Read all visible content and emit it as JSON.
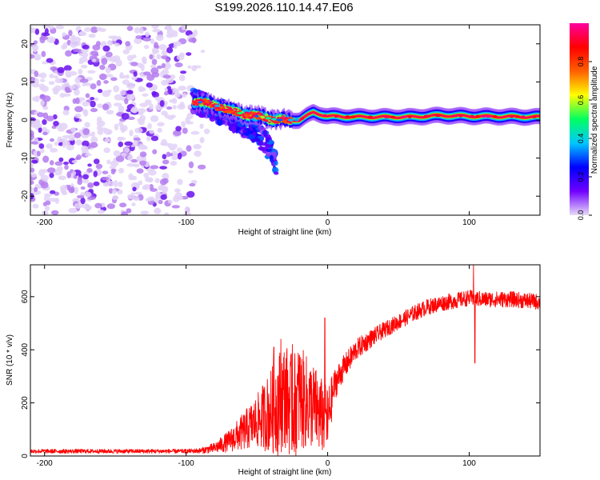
{
  "title": "S199.2026.110.14.47.E06",
  "chart_data": [
    {
      "type": "heatmap",
      "title": "S199.2026.110.14.47.E06",
      "xlabel": "Height of straight line (km)",
      "ylabel": "Frequency (Hz)",
      "xlim": [
        -210,
        150
      ],
      "ylim": [
        -25,
        25
      ],
      "xticks": [
        "-200",
        "-100",
        "0",
        "100"
      ],
      "xtick_values": [
        -200,
        -100,
        0,
        100
      ],
      "yticks": [
        "20",
        "10",
        "0",
        "-10",
        "-20"
      ],
      "ytick_values": [
        20,
        10,
        0,
        -10,
        -20
      ],
      "colorbar": {
        "label": "Normalized spectral amplitude",
        "range": [
          0,
          1
        ],
        "ticks": [
          "0.0",
          "0.2",
          "0.4",
          "0.6",
          "0.8"
        ],
        "tick_values": [
          0.0,
          0.2,
          0.4,
          0.6,
          0.8
        ],
        "colors": [
          "#e8dcf8",
          "#7000ff",
          "#0000ff",
          "#00c8ff",
          "#00ff60",
          "#ffff00",
          "#ff6000",
          "#ff0000",
          "#ff00a0"
        ]
      },
      "features": [
        {
          "name": "noise",
          "x_range": [
            -210,
            -85
          ],
          "freq_range": [
            -25,
            25
          ],
          "amplitude": 0.1
        },
        {
          "name": "diffuse-arm",
          "points": [
            [
              -95,
              5
            ],
            [
              -80,
              3
            ],
            [
              -65,
              0
            ],
            [
              -50,
              -3
            ],
            [
              -40,
              -8
            ],
            [
              -36,
              -12
            ]
          ],
          "amplitude": 0.25
        },
        {
          "name": "main-ridge",
          "points": [
            [
              -95,
              5
            ],
            [
              -80,
              4
            ],
            [
              -65,
              2
            ],
            [
              -50,
              1
            ],
            [
              -35,
              0
            ],
            [
              -20,
              0
            ],
            [
              -10,
              2
            ],
            [
              0,
              1
            ],
            [
              20,
              0.8
            ],
            [
              60,
              0.8
            ],
            [
              80,
              1.2
            ],
            [
              100,
              1
            ],
            [
              150,
              0.8
            ]
          ],
          "amplitude": 0.95
        }
      ]
    },
    {
      "type": "line",
      "xlabel": "Height of straight line (km)",
      "ylabel": "SNR (10 * v/v)",
      "xlim": [
        -210,
        150
      ],
      "ylim": [
        0,
        720
      ],
      "xticks": [
        "-200",
        "-100",
        "0",
        "100"
      ],
      "xtick_values": [
        -200,
        -100,
        0,
        100
      ],
      "yticks": [
        "0",
        "200",
        "400",
        "600"
      ],
      "ytick_values": [
        0,
        200,
        400,
        600
      ],
      "color": "#ff0000",
      "series": [
        {
          "name": "SNR",
          "x": [
            -210,
            -180,
            -150,
            -120,
            -100,
            -90,
            -80,
            -70,
            -60,
            -50,
            -40,
            -35,
            -30,
            -25,
            -20,
            -15,
            -10,
            -5,
            0,
            5,
            10,
            20,
            30,
            40,
            50,
            60,
            70,
            80,
            90,
            100,
            110,
            120,
            130,
            140,
            150
          ],
          "values": [
            18,
            18,
            18,
            18,
            18,
            20,
            30,
            55,
            90,
            130,
            170,
            200,
            230,
            180,
            220,
            200,
            190,
            150,
            140,
            270,
            320,
            400,
            440,
            475,
            505,
            535,
            560,
            575,
            585,
            595,
            590,
            590,
            590,
            585,
            580
          ],
          "noise": [
            8,
            8,
            8,
            8,
            8,
            10,
            20,
            40,
            70,
            100,
            160,
            200,
            200,
            200,
            200,
            180,
            160,
            150,
            120,
            60,
            50,
            40,
            35,
            30,
            30,
            30,
            30,
            30,
            30,
            30,
            30,
            30,
            30,
            30,
            30
          ],
          "spikes": [
            [
              -38,
              410
            ],
            [
              -33,
              440
            ],
            [
              -25,
              420
            ],
            [
              -20,
              380
            ],
            [
              -2,
              520
            ],
            [
              0,
              65
            ],
            [
              103,
              720
            ],
            [
              104,
              350
            ]
          ]
        }
      ]
    }
  ]
}
